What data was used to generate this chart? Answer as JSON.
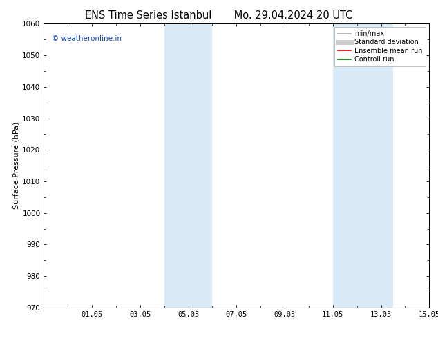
{
  "title_left": "ENS Time Series Istanbul",
  "title_right": "Mo. 29.04.2024 20 UTC",
  "ylabel": "Surface Pressure (hPa)",
  "ylim": [
    970,
    1060
  ],
  "yticks": [
    970,
    980,
    990,
    1000,
    1010,
    1020,
    1030,
    1040,
    1050,
    1060
  ],
  "x_min": 0,
  "x_max": 16,
  "xtick_labels": [
    "01.05",
    "03.05",
    "05.05",
    "07.05",
    "09.05",
    "11.05",
    "13.05",
    "15.05"
  ],
  "xtick_positions": [
    2,
    4,
    6,
    8,
    10,
    12,
    14,
    16
  ],
  "shaded_regions": [
    {
      "x_start": 5.0,
      "x_end": 7.0,
      "color": "#daeaf7"
    },
    {
      "x_start": 12.0,
      "x_end": 14.5,
      "color": "#daeaf7"
    }
  ],
  "watermark_text": "© weatheronline.in",
  "watermark_color": "#1144cc",
  "legend_items": [
    {
      "label": "min/max",
      "color": "#aaaaaa",
      "lw": 1.2
    },
    {
      "label": "Standard deviation",
      "color": "#cccccc",
      "lw": 5
    },
    {
      "label": "Ensemble mean run",
      "color": "#dd0000",
      "lw": 1.2
    },
    {
      "label": "Controll run",
      "color": "#007700",
      "lw": 1.2
    }
  ],
  "bg_color": "#ffffff",
  "grid_color": "#cccccc",
  "title_fontsize": 10.5,
  "label_fontsize": 8,
  "tick_fontsize": 7.5,
  "legend_fontsize": 7,
  "watermark_fontsize": 7.5
}
